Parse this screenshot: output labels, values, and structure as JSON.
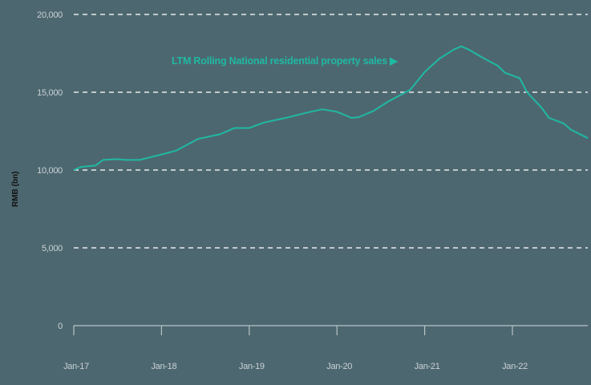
{
  "chart_data": {
    "type": "line",
    "title": "",
    "xlabel": "",
    "ylabel": "RMB (bn)",
    "ylim": [
      0,
      20000
    ],
    "yticks": [
      0,
      5000,
      10000,
      15000,
      20000
    ],
    "ytick_labels": [
      "0",
      "5,000",
      "10,000",
      "15,000",
      "20,000"
    ],
    "xtick_labels": [
      "Jan-17",
      "Jan-18",
      "Jan-19",
      "Jan-20",
      "Jan-21",
      "Jan-22"
    ],
    "grid": "horizontal dashed",
    "legend": null,
    "annotations": [
      "LTM Rolling National residential property sales ▶"
    ],
    "series": [
      {
        "name": "LTM Rolling National residential property sales",
        "color": "#1fb9a3",
        "x": [
          "2017-01",
          "2017-02",
          "2017-04",
          "2017-05",
          "2017-07",
          "2017-08",
          "2017-10",
          "2018-01",
          "2018-03",
          "2018-06",
          "2018-09",
          "2018-11",
          "2019-01",
          "2019-03",
          "2019-06",
          "2019-09",
          "2019-11",
          "2020-01",
          "2020-03",
          "2020-04",
          "2020-06",
          "2020-08",
          "2020-11",
          "2021-01",
          "2021-03",
          "2021-05",
          "2021-06",
          "2021-07",
          "2021-09",
          "2021-11",
          "2021-12",
          "2022-02",
          "2022-03",
          "2022-05",
          "2022-06",
          "2022-08",
          "2022-09",
          "2022-11"
        ],
        "values": [
          10000,
          10200,
          10300,
          10650,
          10700,
          10650,
          10650,
          11000,
          11250,
          12000,
          12300,
          12700,
          12700,
          13050,
          13350,
          13700,
          13900,
          13750,
          13350,
          13400,
          13800,
          14400,
          15150,
          16300,
          17150,
          17750,
          17950,
          17750,
          17200,
          16700,
          16250,
          15900,
          15000,
          14000,
          13350,
          13000,
          12600,
          12050
        ]
      }
    ]
  },
  "labels": {
    "ylabel": "RMB (bn)",
    "annotation": "LTM Rolling National residential property sales ▶"
  },
  "colors": {
    "background": "#4d6770",
    "line": "#1fb9a3",
    "grid": "#e8ecec",
    "axis": "#b9c3c6"
  }
}
